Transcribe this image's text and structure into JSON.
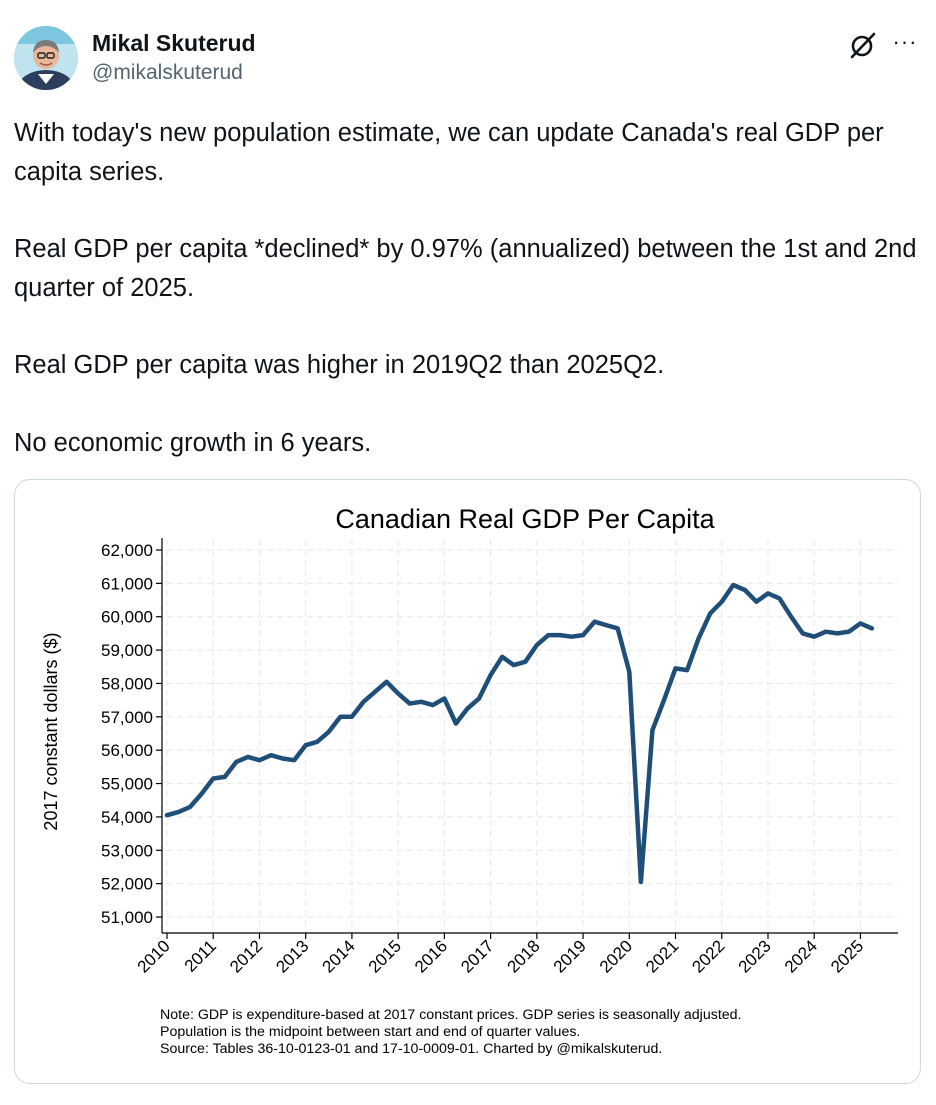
{
  "author": {
    "name": "Mikal Skuterud",
    "handle": "@mikalskuterud",
    "avatar_icon": "profile-photo-icon"
  },
  "actions": {
    "grok_icon": "grok-icon",
    "more_label": "···"
  },
  "tweet": {
    "paragraphs": [
      "With today's new population estimate, we can update Canada's real GDP per capita series.",
      "Real GDP per capita *declined* by 0.97% (annualized) between the 1st and 2nd quarter of 2025.",
      "Real GDP per capita was higher in 2019Q2 than 2025Q2.",
      "No economic growth in 6 years."
    ]
  },
  "colors": {
    "line": "#1f4e79",
    "grid": "#e8e8e8",
    "text": "#0f1419",
    "muted": "#536471",
    "border": "#cfd9de"
  },
  "chart_data": {
    "type": "line",
    "title": "Canadian Real GDP Per Capita",
    "xlabel": "",
    "ylabel": "2017 constant dollars ($)",
    "ylim": [
      51000,
      62000
    ],
    "xlim": [
      2010,
      2025.25
    ],
    "yticks": [
      51000,
      52000,
      53000,
      54000,
      55000,
      56000,
      57000,
      58000,
      59000,
      60000,
      61000,
      62000
    ],
    "ytick_labels": [
      "51,000",
      "52,000",
      "53,000",
      "54,000",
      "55,000",
      "56,000",
      "57,000",
      "58,000",
      "59,000",
      "60,000",
      "61,000",
      "62,000"
    ],
    "xticks": [
      2010,
      2011,
      2012,
      2013,
      2014,
      2015,
      2016,
      2017,
      2018,
      2019,
      2020,
      2021,
      2022,
      2023,
      2024,
      2025
    ],
    "xtick_labels": [
      "2010",
      "2011",
      "2012",
      "2013",
      "2014",
      "2015",
      "2016",
      "2017",
      "2018",
      "2019",
      "2020",
      "2021",
      "2022",
      "2023",
      "2024",
      "2025"
    ],
    "grid": true,
    "series": [
      {
        "name": "Real GDP per capita",
        "x": [
          2010.0,
          2010.25,
          2010.5,
          2010.75,
          2011.0,
          2011.25,
          2011.5,
          2011.75,
          2012.0,
          2012.25,
          2012.5,
          2012.75,
          2013.0,
          2013.25,
          2013.5,
          2013.75,
          2014.0,
          2014.25,
          2014.5,
          2014.75,
          2015.0,
          2015.25,
          2015.5,
          2015.75,
          2016.0,
          2016.25,
          2016.5,
          2016.75,
          2017.0,
          2017.25,
          2017.5,
          2017.75,
          2018.0,
          2018.25,
          2018.5,
          2018.75,
          2019.0,
          2019.25,
          2019.5,
          2019.75,
          2020.0,
          2020.25,
          2020.5,
          2020.75,
          2021.0,
          2021.25,
          2021.5,
          2021.75,
          2022.0,
          2022.25,
          2022.5,
          2022.75,
          2023.0,
          2023.25,
          2023.5,
          2023.75,
          2024.0,
          2024.25,
          2024.5,
          2024.75,
          2025.0,
          2025.25
        ],
        "values": [
          54050,
          54150,
          54300,
          54700,
          55150,
          55200,
          55650,
          55800,
          55700,
          55850,
          55750,
          55700,
          56150,
          56250,
          56550,
          57000,
          57000,
          57450,
          57750,
          58050,
          57700,
          57400,
          57450,
          57350,
          57550,
          56800,
          57250,
          57550,
          58250,
          58800,
          58550,
          58650,
          59150,
          59450,
          59450,
          59400,
          59450,
          59850,
          59750,
          59650,
          58350,
          52050,
          56600,
          57500,
          58450,
          58400,
          59350,
          60100,
          60450,
          60950,
          60800,
          60450,
          60700,
          60550,
          60000,
          59500,
          59400,
          59550,
          59500,
          59550,
          59800,
          59650
        ]
      }
    ],
    "notes": [
      "Note: GDP is expenditure-based at 2017 constant prices. GDP series is seasonally adjusted.",
      "Population is the midpoint between start and end of quarter values.",
      "Source: Tables 36-10-0123-01 and 17-10-0009-01. Charted by @mikalskuterud."
    ]
  }
}
